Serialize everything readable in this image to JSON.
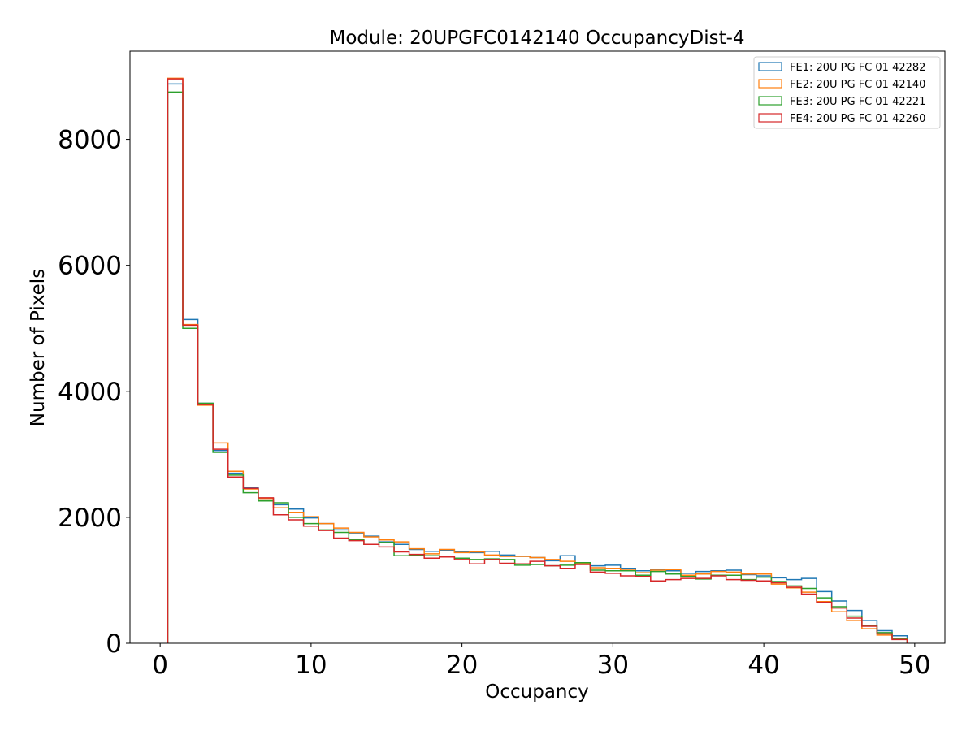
{
  "chart_data": {
    "type": "step",
    "title": "Module: 20UPGFC0142140 OccupancyDist-4",
    "xlabel": "Occupancy",
    "ylabel": "Number of Pixels",
    "xlim": [
      -2,
      52
    ],
    "ylim": [
      0,
      9400
    ],
    "xticks": [
      0,
      10,
      20,
      30,
      40,
      50
    ],
    "yticks": [
      0,
      2000,
      4000,
      6000,
      8000
    ],
    "bin_start": 0.5,
    "bin_width": 1,
    "grid": false,
    "legend_position": "top-right",
    "series": [
      {
        "name": "FE1: 20U PG FC 01 42282",
        "color": "#1f77b4",
        "values": [
          8880,
          5140,
          3810,
          3060,
          2700,
          2470,
          2300,
          2200,
          2130,
          1990,
          1900,
          1800,
          1740,
          1700,
          1610,
          1570,
          1490,
          1460,
          1480,
          1450,
          1440,
          1460,
          1400,
          1380,
          1360,
          1310,
          1390,
          1280,
          1230,
          1240,
          1190,
          1150,
          1170,
          1150,
          1110,
          1140,
          1150,
          1160,
          1090,
          1070,
          1040,
          1010,
          1030,
          820,
          670,
          520,
          360,
          200,
          120
        ]
      },
      {
        "name": "FE2: 20U PG FC 01 42140",
        "color": "#ff7f0e",
        "values": [
          8970,
          5060,
          3780,
          3180,
          2730,
          2450,
          2300,
          2150,
          2080,
          2010,
          1900,
          1830,
          1760,
          1690,
          1640,
          1610,
          1500,
          1420,
          1490,
          1440,
          1450,
          1400,
          1380,
          1380,
          1360,
          1330,
          1300,
          1270,
          1200,
          1190,
          1160,
          1120,
          1160,
          1170,
          1080,
          1100,
          1140,
          1130,
          1100,
          1100,
          940,
          880,
          810,
          660,
          500,
          360,
          230,
          130,
          70
        ]
      },
      {
        "name": "FE3: 20U PG FC 01 42221",
        "color": "#2ca02c",
        "values": [
          8750,
          5000,
          3810,
          3030,
          2670,
          2390,
          2260,
          2230,
          2000,
          1900,
          1800,
          1760,
          1640,
          1570,
          1600,
          1390,
          1400,
          1390,
          1380,
          1350,
          1330,
          1340,
          1330,
          1240,
          1250,
          1230,
          1240,
          1280,
          1160,
          1150,
          1150,
          1080,
          1140,
          1100,
          1060,
          1020,
          1080,
          1080,
          1010,
          1050,
          980,
          910,
          870,
          720,
          580,
          430,
          280,
          170,
          80
        ]
      },
      {
        "name": "FE4: 20U PG FC 01 42260",
        "color": "#d62728",
        "values": [
          8960,
          5050,
          3790,
          3080,
          2640,
          2460,
          2310,
          2040,
          1960,
          1860,
          1790,
          1670,
          1630,
          1570,
          1530,
          1450,
          1410,
          1350,
          1370,
          1330,
          1260,
          1330,
          1270,
          1260,
          1300,
          1230,
          1190,
          1250,
          1130,
          1110,
          1070,
          1060,
          990,
          1010,
          1030,
          1030,
          1070,
          1010,
          1000,
          990,
          960,
          890,
          780,
          650,
          560,
          400,
          270,
          150,
          60
        ]
      }
    ]
  }
}
